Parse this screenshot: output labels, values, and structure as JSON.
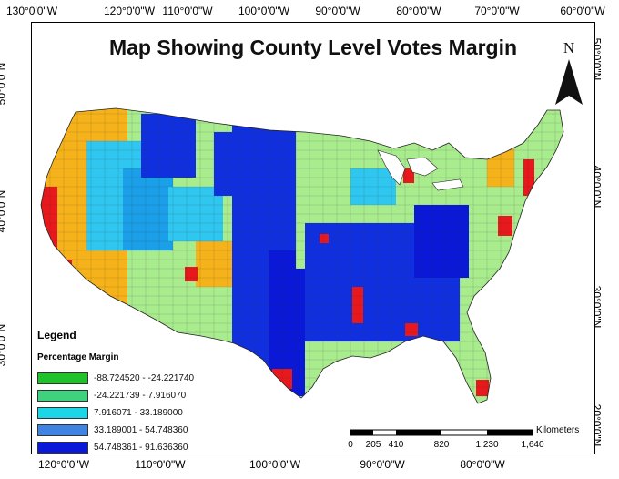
{
  "map": {
    "title": "Map Showing County Level Votes Margin",
    "north_arrow_label": "N",
    "lon_ticks_top": [
      "130°0'0\"W",
      "120°0'0\"W",
      "110°0'0\"W",
      "100°0'0\"W",
      "90°0'0\"W",
      "80°0'0\"W",
      "70°0'0\"W",
      "60°0'0\"W"
    ],
    "lon_ticks_bottom": [
      "120°0'0\"W",
      "110°0'0\"W",
      "100°0'0\"W",
      "90°0'0\"W",
      "80°0'0\"W"
    ],
    "lat_ticks_left": [
      "50°0'0\"N",
      "40°0'0\"N",
      "30°0'0\"N"
    ],
    "lat_ticks_right": [
      "50°0'0\"N",
      "40°0'0\"N",
      "30°0'0\"N",
      "20°0'0\"N"
    ]
  },
  "legend": {
    "title": "Legend",
    "subtitle": "Percentage Margin",
    "classes": [
      {
        "label": "-88.724520 - -24.221740",
        "color": "#1fc22a"
      },
      {
        "label": "-24.221739 - 7.916070",
        "color": "#3fd17d"
      },
      {
        "label": "7.916071 - 33.189000",
        "color": "#1ad6e6"
      },
      {
        "label": "33.189001 - 54.748360",
        "color": "#3f83e3"
      },
      {
        "label": "54.748361 - 91.636360",
        "color": "#0a18d8"
      }
    ]
  },
  "map_colors": {
    "red": "#e8191c",
    "orange": "#f5b21a",
    "lightgreen": "#a8ec8e",
    "cyan": "#2fc7f0",
    "blue": "#1030e0"
  },
  "scale_bar": {
    "unit": "Kilometers",
    "labels": [
      "0",
      "205",
      "410",
      "820",
      "1,230",
      "1,640"
    ]
  }
}
